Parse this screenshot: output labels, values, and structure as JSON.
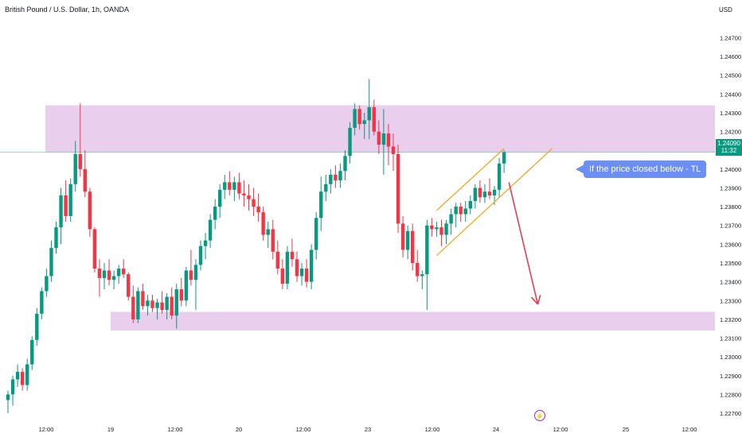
{
  "header": {
    "symbol_title": "British Pound / U.S. Dollar, 1h, OANDA",
    "currency": "USD"
  },
  "price_badge": {
    "price": "1.24090",
    "countdown": "11:32"
  },
  "annotation": {
    "text": "If the price closed below - TL"
  },
  "colors": {
    "up": "#089981",
    "down": "#f23645",
    "zone": "#e1bee7",
    "trendline": "#f5a623",
    "arrow": "#e0424f",
    "callout": "#6b8ff2",
    "event": "#9c27b0"
  },
  "icons": {
    "event_marker": "lightning-icon"
  },
  "chart_data": {
    "type": "candlestick",
    "title": "British Pound / U.S. Dollar, 1h, OANDA",
    "ylim": [
      1.2265,
      1.2485
    ],
    "y_ticks": [
      "1.24700",
      "1.24600",
      "1.24500",
      "1.24400",
      "1.24300",
      "1.24200",
      "1.24000",
      "1.23900",
      "1.23800",
      "1.23700",
      "1.23600",
      "1.23500",
      "1.23400",
      "1.23300",
      "1.23200",
      "1.23100",
      "1.23000",
      "1.22900",
      "1.22800",
      "1.22700"
    ],
    "x_ticks": [
      "12:00",
      "19",
      "12:00",
      "20",
      "12:00",
      "23",
      "12:00",
      "24",
      "12:00",
      "25",
      "12:00"
    ],
    "current_price": 1.2409,
    "zones": [
      {
        "from": 1.2409,
        "to": 1.2434
      },
      {
        "from": 1.2314,
        "to": 1.2324
      }
    ],
    "candles": [
      [
        1.2277,
        1.2282,
        1.227,
        1.228
      ],
      [
        1.228,
        1.229,
        1.2274,
        1.2288
      ],
      [
        1.2288,
        1.2296,
        1.2284,
        1.2292
      ],
      [
        1.2292,
        1.2294,
        1.2282,
        1.2285
      ],
      [
        1.2285,
        1.2299,
        1.2282,
        1.2296
      ],
      [
        1.2296,
        1.2311,
        1.2293,
        1.2309
      ],
      [
        1.2309,
        1.2326,
        1.2306,
        1.2323
      ],
      [
        1.2323,
        1.2337,
        1.232,
        1.2335
      ],
      [
        1.2335,
        1.2347,
        1.2332,
        1.2343
      ],
      [
        1.2343,
        1.2362,
        1.234,
        1.2358
      ],
      [
        1.2358,
        1.2372,
        1.2355,
        1.2369
      ],
      [
        1.2369,
        1.239,
        1.236,
        1.2386
      ],
      [
        1.2386,
        1.2394,
        1.2372,
        1.2375
      ],
      [
        1.2375,
        1.2395,
        1.2372,
        1.2392
      ],
      [
        1.2392,
        1.2415,
        1.2388,
        1.2408
      ],
      [
        1.2408,
        1.2435,
        1.2396,
        1.24
      ],
      [
        1.24,
        1.241,
        1.2385,
        1.2388
      ],
      [
        1.2388,
        1.239,
        1.2364,
        1.2368
      ],
      [
        1.2368,
        1.2369,
        1.2345,
        1.2347
      ],
      [
        1.2347,
        1.2352,
        1.2332,
        1.2342
      ],
      [
        1.2342,
        1.235,
        1.2336,
        1.2346
      ],
      [
        1.2346,
        1.2352,
        1.2338,
        1.2341
      ],
      [
        1.2341,
        1.2346,
        1.2336,
        1.2343
      ],
      [
        1.2343,
        1.2349,
        1.2339,
        1.2347
      ],
      [
        1.2347,
        1.2352,
        1.2342,
        1.2344
      ],
      [
        1.2344,
        1.2345,
        1.233,
        1.2332
      ],
      [
        1.2332,
        1.2338,
        1.2318,
        1.232
      ],
      [
        1.232,
        1.2337,
        1.2318,
        1.2335
      ],
      [
        1.2335,
        1.2339,
        1.2325,
        1.2327
      ],
      [
        1.2327,
        1.2333,
        1.2322,
        1.233
      ],
      [
        1.233,
        1.2333,
        1.2324,
        1.2326
      ],
      [
        1.2326,
        1.2331,
        1.232,
        1.2329
      ],
      [
        1.2329,
        1.2335,
        1.2323,
        1.2325
      ],
      [
        1.2325,
        1.2334,
        1.232,
        1.2332
      ],
      [
        1.2332,
        1.2337,
        1.232,
        1.2322
      ],
      [
        1.2322,
        1.2339,
        1.2315,
        1.2336
      ],
      [
        1.2336,
        1.2342,
        1.2327,
        1.233
      ],
      [
        1.233,
        1.2348,
        1.2327,
        1.2346
      ],
      [
        1.2346,
        1.2357,
        1.2338,
        1.2341
      ],
      [
        1.2341,
        1.2352,
        1.2325,
        1.2349
      ],
      [
        1.2349,
        1.2362,
        1.2346,
        1.2359
      ],
      [
        1.2359,
        1.2366,
        1.2352,
        1.2362
      ],
      [
        1.2362,
        1.2376,
        1.2358,
        1.2373
      ],
      [
        1.2373,
        1.2384,
        1.2368,
        1.238
      ],
      [
        1.238,
        1.2392,
        1.2374,
        1.2389
      ],
      [
        1.2389,
        1.2397,
        1.2384,
        1.2393
      ],
      [
        1.2393,
        1.2399,
        1.2386,
        1.2389
      ],
      [
        1.2389,
        1.2396,
        1.2383,
        1.2393
      ],
      [
        1.2393,
        1.2398,
        1.2384,
        1.2387
      ],
      [
        1.2387,
        1.2394,
        1.238,
        1.2386
      ],
      [
        1.2386,
        1.2392,
        1.2378,
        1.2384
      ],
      [
        1.2384,
        1.239,
        1.2375,
        1.238
      ],
      [
        1.238,
        1.2387,
        1.2372,
        1.2377
      ],
      [
        1.2377,
        1.238,
        1.2362,
        1.2365
      ],
      [
        1.2365,
        1.2372,
        1.2358,
        1.2368
      ],
      [
        1.2368,
        1.2373,
        1.2352,
        1.2356
      ],
      [
        1.2356,
        1.2362,
        1.2344,
        1.2347
      ],
      [
        1.2347,
        1.2352,
        1.2336,
        1.2339
      ],
      [
        1.2339,
        1.2359,
        1.2336,
        1.2356
      ],
      [
        1.2356,
        1.2363,
        1.2348,
        1.2352
      ],
      [
        1.2352,
        1.2356,
        1.234,
        1.2343
      ],
      [
        1.2343,
        1.235,
        1.2338,
        1.2347
      ],
      [
        1.2347,
        1.2352,
        1.2337,
        1.234
      ],
      [
        1.234,
        1.236,
        1.2336,
        1.2357
      ],
      [
        1.2357,
        1.2377,
        1.2352,
        1.2374
      ],
      [
        1.2374,
        1.2396,
        1.2367,
        1.2388
      ],
      [
        1.2388,
        1.2397,
        1.2383,
        1.2392
      ],
      [
        1.2392,
        1.24,
        1.2387,
        1.2397
      ],
      [
        1.2397,
        1.2402,
        1.239,
        1.2394
      ],
      [
        1.2394,
        1.2403,
        1.239,
        1.2399
      ],
      [
        1.2399,
        1.241,
        1.2394,
        1.2407
      ],
      [
        1.2407,
        1.2425,
        1.2403,
        1.2422
      ],
      [
        1.2422,
        1.2435,
        1.2418,
        1.2432
      ],
      [
        1.2432,
        1.2434,
        1.2421,
        1.2424
      ],
      [
        1.2424,
        1.243,
        1.2416,
        1.2426
      ],
      [
        1.2426,
        1.2448,
        1.2416,
        1.2433
      ],
      [
        1.2433,
        1.2437,
        1.2418,
        1.242
      ],
      [
        1.242,
        1.2426,
        1.2408,
        1.2413
      ],
      [
        1.2413,
        1.2432,
        1.2397,
        1.2419
      ],
      [
        1.2419,
        1.2424,
        1.2402,
        1.2412
      ],
      [
        1.2412,
        1.2419,
        1.2399,
        1.2408
      ],
      [
        1.2408,
        1.2413,
        1.2366,
        1.2371
      ],
      [
        1.2371,
        1.2375,
        1.2353,
        1.2357
      ],
      [
        1.2357,
        1.237,
        1.2352,
        1.2367
      ],
      [
        1.2367,
        1.2371,
        1.2346,
        1.235
      ],
      [
        1.235,
        1.2357,
        1.234,
        1.2343
      ],
      [
        1.2343,
        1.2346,
        1.2336,
        1.2344
      ],
      [
        1.2344,
        1.2373,
        1.2325,
        1.237
      ],
      [
        1.237,
        1.2374,
        1.2364,
        1.2368
      ],
      [
        1.2368,
        1.2372,
        1.2364,
        1.2369
      ],
      [
        1.2369,
        1.2373,
        1.2359,
        1.2365
      ],
      [
        1.2365,
        1.2373,
        1.236,
        1.2371
      ],
      [
        1.2371,
        1.2379,
        1.2365,
        1.2376
      ],
      [
        1.2376,
        1.2382,
        1.2369,
        1.238
      ],
      [
        1.238,
        1.2382,
        1.2372,
        1.2376
      ],
      [
        1.2376,
        1.2383,
        1.2372,
        1.2379
      ],
      [
        1.2379,
        1.2386,
        1.2376,
        1.2383
      ],
      [
        1.2383,
        1.2392,
        1.2379,
        1.239
      ],
      [
        1.239,
        1.2394,
        1.2382,
        1.2385
      ],
      [
        1.2385,
        1.2392,
        1.2382,
        1.2388
      ],
      [
        1.2388,
        1.2395,
        1.2384,
        1.2386
      ],
      [
        1.2386,
        1.2391,
        1.2381,
        1.2389
      ],
      [
        1.2389,
        1.2406,
        1.2385,
        1.2403
      ],
      [
        1.2403,
        1.241,
        1.2398,
        1.2409
      ]
    ],
    "channel": {
      "upper": {
        "from": [
          89,
          1.2378
        ],
        "to": [
          103,
          1.2411
        ]
      },
      "lower": {
        "from": [
          89,
          1.2354
        ],
        "to": [
          113,
          1.2411
        ]
      }
    },
    "arrow": {
      "from": [
        104,
        1.2393
      ],
      "to": [
        110,
        1.2328
      ]
    }
  }
}
